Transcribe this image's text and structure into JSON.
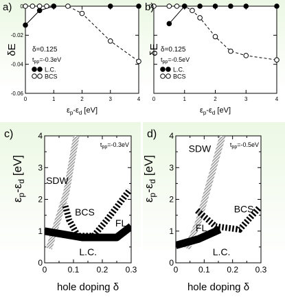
{
  "chart_data": [
    {
      "id": "a",
      "type": "line",
      "panel_label": "a)",
      "xlabel_main": "ε",
      "xlabel_sub1": "p",
      "xlabel_mid": "-ε",
      "xlabel_sub2": "d",
      "xlabel_unit": " [eV]",
      "ylabel": "δE",
      "xlim": [
        0,
        4
      ],
      "ylim": [
        -0.06,
        0
      ],
      "x_ticks": [
        0,
        1,
        2,
        3,
        4
      ],
      "y_ticks": [
        0,
        -0.02,
        -0.04,
        -0.06
      ],
      "x_tick_labels": [
        "0",
        "1",
        "2",
        "3",
        "4"
      ],
      "y_tick_labels": [
        "0",
        "-0.02",
        "-0.04",
        "-0.06"
      ],
      "annotations": [
        "δ=0.125",
        "t",
        "pp",
        "=-0.3eV"
      ],
      "legend": {
        "position": "bottom-left",
        "labels": [
          "L.C.",
          "BCS"
        ]
      },
      "series": [
        {
          "name": "L.C.",
          "marker": "filled",
          "style": "solid",
          "dashed_from_index": 3,
          "x": [
            0,
            0.5,
            1,
            3,
            4
          ],
          "y": [
            -0.013,
            -0.003,
            0,
            0,
            0
          ]
        },
        {
          "name": "BCS",
          "marker": "open",
          "style": "dashed",
          "x": [
            0,
            0.25,
            0.5,
            0.75,
            1,
            1.5,
            2,
            3,
            4
          ],
          "y": [
            0,
            0,
            0,
            0,
            0,
            0,
            -0.005,
            -0.024,
            -0.038
          ]
        }
      ]
    },
    {
      "id": "b",
      "type": "line",
      "panel_label": "b)",
      "xlabel_main": "ε",
      "xlabel_sub1": "p",
      "xlabel_mid": "-ε",
      "xlabel_sub2": "d",
      "xlabel_unit": " [eV]",
      "ylabel": "δE",
      "xlim": [
        0,
        4
      ],
      "ylim": [
        -0.06,
        0
      ],
      "x_ticks": [
        0,
        1,
        2,
        3,
        4
      ],
      "y_ticks": [
        0,
        -0.02,
        -0.04,
        -0.06
      ],
      "x_tick_labels": [
        "0",
        "1",
        "2",
        "3",
        "4"
      ],
      "y_tick_labels": [
        "0",
        "",
        "",
        ""
      ],
      "annotations": [
        "δ=0.125",
        "t",
        "pp",
        "=-0.5eV"
      ],
      "legend": {
        "position": "bottom-left",
        "labels": [
          "L.C.",
          "BCS"
        ]
      },
      "series": [
        {
          "name": "L.C.",
          "marker": "filled",
          "style": "solid",
          "x": [
            0.5,
            1,
            1.5,
            2,
            2.5,
            3,
            4
          ],
          "y": [
            -0.012,
            0,
            0,
            0,
            0,
            0,
            0
          ]
        },
        {
          "name": "BCS",
          "marker": "open",
          "style": "dashed",
          "x": [
            0,
            0.5,
            0.75,
            1,
            1.25,
            1.5,
            2,
            2.5,
            3,
            4
          ],
          "y": [
            0,
            0,
            0,
            0,
            -0.003,
            -0.008,
            -0.021,
            -0.031,
            -0.034,
            -0.037
          ]
        }
      ]
    },
    {
      "id": "c",
      "type": "phase-diagram",
      "panel_label": "c)",
      "xlabel": "hole doping δ",
      "ylabel_main": "ε",
      "ylabel_sub1": "p",
      "ylabel_mid": "-ε",
      "ylabel_sub2": "d",
      "ylabel_unit": " [eV]",
      "xlim": [
        0,
        0.3
      ],
      "ylim": [
        0,
        4
      ],
      "x_ticks": [
        0,
        0.05,
        0.1,
        0.15,
        0.2,
        0.25,
        0.3
      ],
      "y_ticks": [
        0,
        0.5,
        1,
        1.5,
        2,
        2.5,
        3,
        3.5,
        4
      ],
      "x_tick_labels": [
        "0",
        "",
        "0.1",
        "",
        "0.2",
        "",
        "0.3"
      ],
      "y_tick_labels": [
        "0",
        "",
        "1",
        "",
        "2",
        "",
        "3",
        "",
        "4"
      ],
      "annotations": [
        "t",
        "pp",
        "=-0.3eV"
      ],
      "region_labels": [
        {
          "text": "SDW",
          "x": 0.005,
          "y": 2.6
        },
        {
          "text": "BCS",
          "x": 0.105,
          "y": 1.6
        },
        {
          "text": "FL",
          "x": 0.245,
          "y": 1.25
        },
        {
          "text": "L.C.",
          "x": 0.12,
          "y": 0.35
        }
      ],
      "boundaries": [
        {
          "name": "SDW",
          "style": "hatched-gray",
          "x": [
            0.015,
            0.075,
            0.11
          ],
          "y": [
            0.45,
            2.2,
            4.0
          ]
        },
        {
          "name": "L.C.",
          "style": "solid-thick",
          "x": [
            0.0,
            0.13,
            0.25,
            0.3
          ],
          "y": [
            1.0,
            0.8,
            0.8,
            1.15
          ]
        },
        {
          "name": "BCS",
          "style": "striped",
          "x": [
            0.115,
            0.085,
            0.07
          ],
          "y": [
            0.85,
            1.35,
            1.85
          ]
        },
        {
          "name": "BCS-FL",
          "style": "striped",
          "x": [
            0.12,
            0.17
          ],
          "y": [
            0.85,
            0.85
          ]
        },
        {
          "name": "FL",
          "style": "striped",
          "x": [
            0.17,
            0.22,
            0.295
          ],
          "y": [
            0.85,
            1.4,
            2.3
          ]
        }
      ]
    },
    {
      "id": "d",
      "type": "phase-diagram",
      "panel_label": "d)",
      "xlabel": "hole doping δ",
      "ylabel_main": "ε",
      "ylabel_sub1": "p",
      "ylabel_mid": "-ε",
      "ylabel_sub2": "d",
      "ylabel_unit": " [eV]",
      "xlim": [
        0,
        0.3
      ],
      "ylim": [
        0,
        4
      ],
      "x_ticks": [
        0,
        0.05,
        0.1,
        0.15,
        0.2,
        0.25,
        0.3
      ],
      "y_ticks": [
        0,
        0.5,
        1,
        1.5,
        2,
        2.5,
        3,
        3.5,
        4
      ],
      "x_tick_labels": [
        "0",
        "",
        "0.1",
        "",
        "0.2",
        "",
        "0.3"
      ],
      "y_tick_labels": [
        "0",
        "",
        "1",
        "",
        "2",
        "",
        "3",
        "",
        "4"
      ],
      "annotations": [
        "t",
        "pp",
        "=-0.5eV"
      ],
      "region_labels": [
        {
          "text": "SDW",
          "x": 0.045,
          "y": 3.6
        },
        {
          "text": "BCS",
          "x": 0.205,
          "y": 1.7
        },
        {
          "text": "FL",
          "x": 0.07,
          "y": 1.1
        },
        {
          "text": "L.C.",
          "x": 0.13,
          "y": 0.35
        }
      ],
      "boundaries": [
        {
          "name": "SDW",
          "style": "hatched-gray",
          "x": [
            0.04,
            0.08,
            0.165
          ],
          "y": [
            0.45,
            1.3,
            4.0
          ]
        },
        {
          "name": "L.C.",
          "style": "solid-thick",
          "x": [
            0.0,
            0.08,
            0.155
          ],
          "y": [
            0.55,
            0.75,
            1.05
          ]
        },
        {
          "name": "BCS",
          "style": "striped",
          "x": [
            0.075,
            0.14,
            0.225,
            0.295
          ],
          "y": [
            1.65,
            1.15,
            1.05,
            1.75
          ]
        }
      ]
    }
  ]
}
